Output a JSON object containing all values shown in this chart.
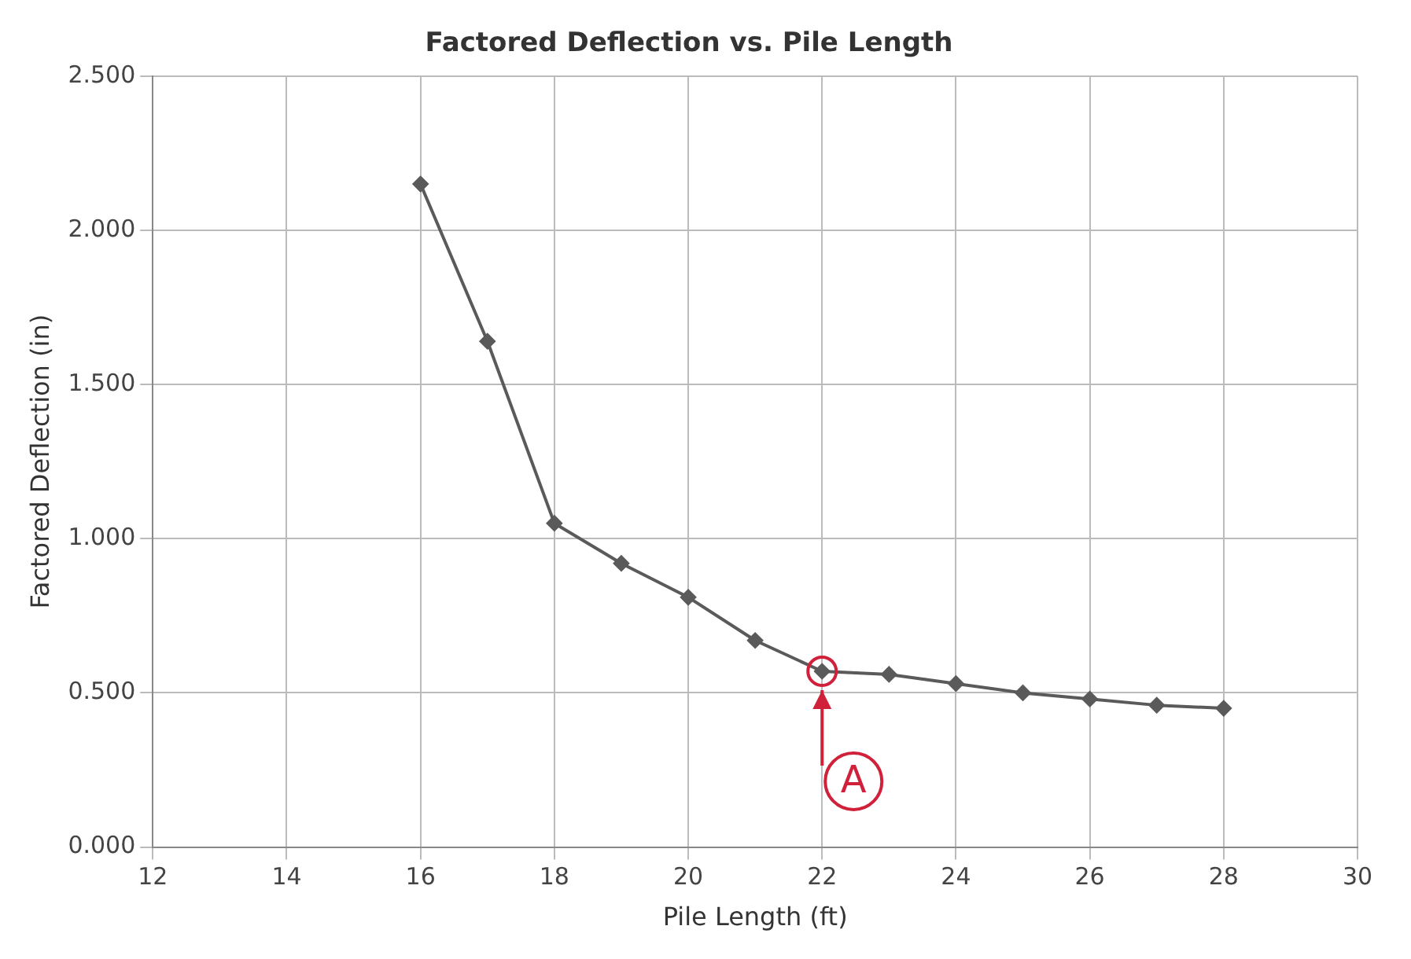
{
  "chart_data": {
    "type": "line",
    "title": "Factored Deflection vs. Pile Length",
    "xlabel": "Pile Length (ft)",
    "ylabel": "Factored Deflection (in)",
    "x": [
      16,
      17,
      18,
      19,
      20,
      21,
      22,
      23,
      24,
      25,
      26,
      27,
      28
    ],
    "series": [
      {
        "color": "#5a5a5a",
        "values": [
          2.15,
          1.64,
          1.05,
          0.92,
          0.81,
          0.67,
          0.57,
          0.56,
          0.53,
          0.5,
          0.48,
          0.46,
          0.45
        ]
      }
    ],
    "xlim": [
      12,
      30
    ],
    "xticks": [
      12,
      14,
      16,
      18,
      20,
      22,
      24,
      26,
      28,
      30
    ],
    "ylim": [
      0,
      2.5
    ],
    "yticks": [
      {
        "value": 0,
        "label": "0.000"
      },
      {
        "value": 0.5,
        "label": "0.500"
      },
      {
        "value": 1,
        "label": "1.000"
      },
      {
        "value": 1.5,
        "label": "1.500"
      },
      {
        "value": 2,
        "label": "2.000"
      },
      {
        "value": 2.5,
        "label": "2.500"
      }
    ],
    "annotations": [
      {
        "text": "A",
        "x": 22,
        "y": 0.57
      }
    ],
    "grid": true,
    "legend": false,
    "marker": "diamond",
    "line_style": "solid"
  }
}
